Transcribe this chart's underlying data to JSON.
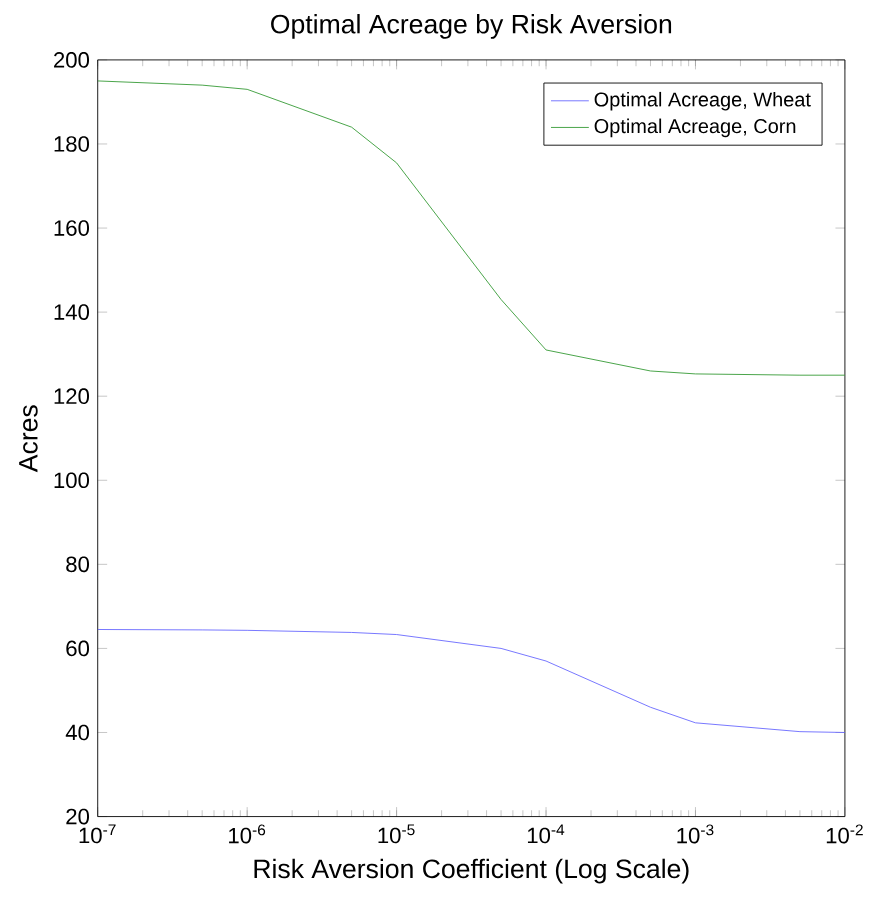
{
  "chart_data": {
    "type": "line",
    "title": "Optimal Acreage by Risk Aversion",
    "xlabel": "Risk Aversion Coefficient (Log Scale)",
    "ylabel": "Acres",
    "log": "x",
    "xlim": [
      1e-07,
      0.01
    ],
    "ylim": [
      20,
      200
    ],
    "xticks": [
      {
        "value": 1e-07,
        "label": "10$^{-7}$"
      },
      {
        "value": 1e-06,
        "label": "10$^{-6}$"
      },
      {
        "value": 1e-05,
        "label": "10$^{-5}$"
      },
      {
        "value": 0.0001,
        "label": "10$^{-4}$"
      },
      {
        "value": 0.001,
        "label": "10$^{-3}$"
      },
      {
        "value": 0.01,
        "label": "10$^{-2}$"
      }
    ],
    "yticks": [
      20,
      40,
      60,
      80,
      100,
      120,
      140,
      160,
      180,
      200
    ],
    "legend": "top right",
    "grid": false,
    "x": [
      1e-07,
      5e-07,
      1e-06,
      5e-06,
      1e-05,
      5e-05,
      0.0001,
      0.0005,
      0.001,
      0.005,
      0.01
    ],
    "series": [
      {
        "name": "Optimal Acreage, Wheat",
        "color": "#6666ff",
        "values": [
          64.5,
          64.4,
          64.3,
          63.8,
          63.3,
          60,
          57,
          46,
          42.3,
          40.2,
          40
        ]
      },
      {
        "name": "Optimal Acreage, Corn",
        "color": "#339933",
        "values": [
          195,
          194,
          193,
          184,
          175.5,
          143,
          131,
          126,
          125.3,
          125,
          125
        ]
      }
    ]
  }
}
